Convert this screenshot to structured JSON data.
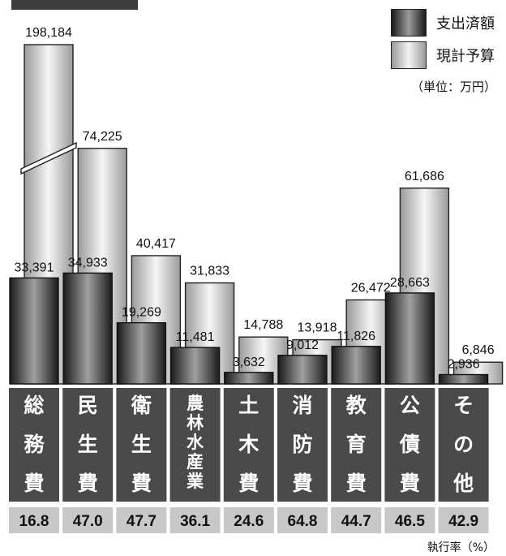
{
  "chart_data": {
    "type": "bar",
    "categories": [
      "総務費",
      "民生費",
      "衛生費",
      "農林水産業",
      "土木費",
      "消防費",
      "教育費",
      "公債費",
      "その他"
    ],
    "category_labels": [
      [
        "総",
        "務",
        "費"
      ],
      [
        "民",
        "生",
        "費"
      ],
      [
        "衛",
        "生",
        "費"
      ],
      [
        "農",
        "林",
        "水",
        "産",
        "業"
      ],
      [
        "土",
        "木",
        "費"
      ],
      [
        "消",
        "防",
        "費"
      ],
      [
        "教",
        "育",
        "費"
      ],
      [
        "公",
        "債",
        "費"
      ],
      [
        "そ",
        "の",
        "他"
      ]
    ],
    "series": [
      {
        "name": "支出済額",
        "values": [
          33391,
          34933,
          19269,
          11481,
          3632,
          9012,
          11826,
          28663,
          2936
        ],
        "labels": [
          "33,391",
          "34,933",
          "19,269",
          "11,481",
          "3,632",
          "9,012",
          "11,826",
          "28,663",
          "2,936"
        ]
      },
      {
        "name": "現計予算",
        "values": [
          198184,
          74225,
          40417,
          31833,
          14788,
          13918,
          26472,
          61686,
          6846
        ],
        "labels": [
          "198,184",
          "74,225",
          "40,417",
          "31,833",
          "14,788",
          "13,918",
          "26,472",
          "61,686",
          "6,846"
        ]
      }
    ],
    "execution_rates": [
      "16.8",
      "47.0",
      "47.7",
      "36.1",
      "24.6",
      "64.8",
      "44.7",
      "46.5",
      "42.9"
    ],
    "axis_break": {
      "series": "現計予算",
      "category": "総務費"
    },
    "unit": "（単位：万円）",
    "rate_label": "執行率（%）",
    "legend_placement": "top-right",
    "grid": false
  },
  "colors": {
    "spent_dark": "#1a1a1a",
    "spent_light": "#9c9c9c",
    "budget_dark": "#9a9a9a",
    "budget_light": "#f6f6f6",
    "label_band": "#4a4a4a",
    "rate_band": "#c8c8c8"
  }
}
